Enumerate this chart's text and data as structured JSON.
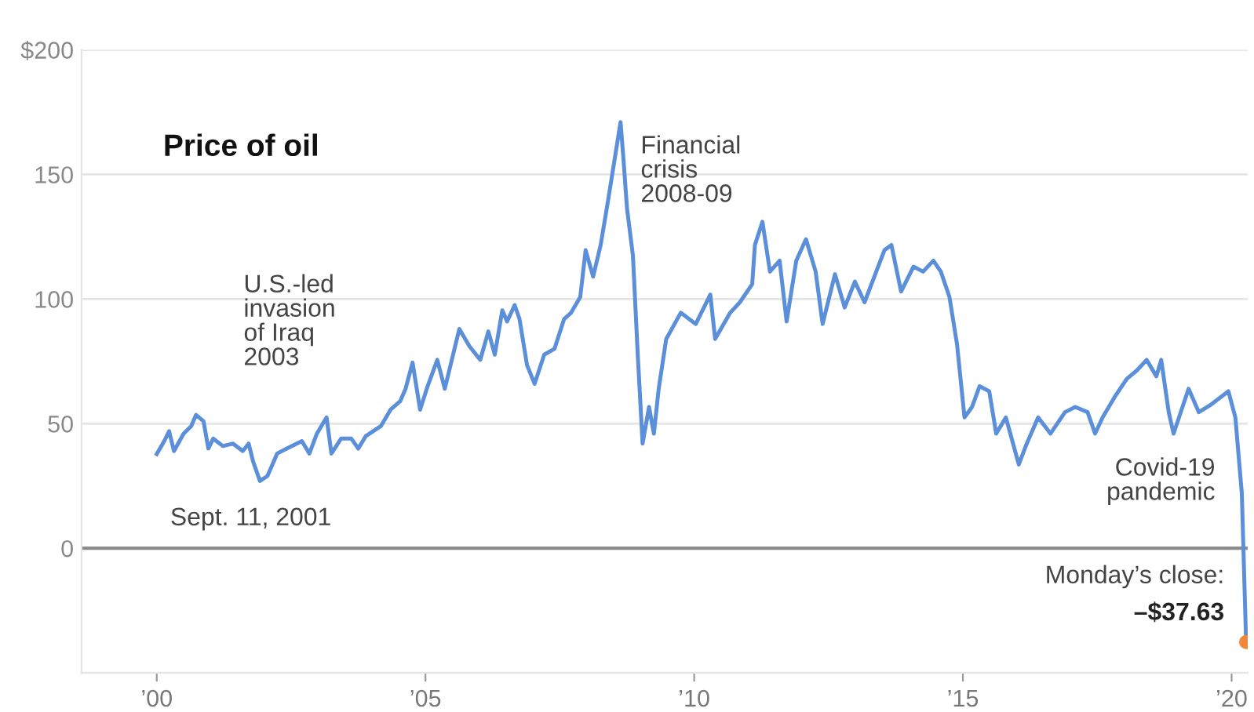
{
  "chart_data": {
    "type": "line",
    "title": "Price of oil",
    "x": [
      2000.0,
      2000.14,
      2000.23,
      2000.32,
      2000.5,
      2000.64,
      2000.73,
      2000.87,
      2000.96,
      2001.05,
      2001.23,
      2001.42,
      2001.6,
      2001.71,
      2001.79,
      2001.92,
      2002.06,
      2002.24,
      2002.42,
      2002.7,
      2002.84,
      2002.98,
      2003.16,
      2003.25,
      2003.43,
      2003.62,
      2003.75,
      2003.89,
      2004.17,
      2004.35,
      2004.53,
      2004.63,
      2004.76,
      2004.9,
      2005.04,
      2005.22,
      2005.36,
      2005.54,
      2005.63,
      2005.82,
      2006.02,
      2006.17,
      2006.29,
      2006.43,
      2006.52,
      2006.66,
      2006.75,
      2006.89,
      2007.03,
      2007.21,
      2007.4,
      2007.58,
      2007.71,
      2007.88,
      2007.98,
      2008.12,
      2008.26,
      2008.39,
      2008.53,
      2008.63,
      2008.68,
      2008.75,
      2008.86,
      2008.95,
      2009.04,
      2009.16,
      2009.25,
      2009.34,
      2009.48,
      2009.75,
      2010.03,
      2010.3,
      2010.39,
      2010.67,
      2010.85,
      2011.08,
      2011.13,
      2011.27,
      2011.41,
      2011.59,
      2011.72,
      2011.9,
      2012.08,
      2012.26,
      2012.39,
      2012.62,
      2012.8,
      2012.99,
      2013.17,
      2013.54,
      2013.67,
      2013.85,
      2014.08,
      2014.26,
      2014.45,
      2014.59,
      2014.75,
      2014.89,
      2015.03,
      2015.17,
      2015.31,
      2015.49,
      2015.62,
      2015.8,
      2016.04,
      2016.17,
      2016.4,
      2016.63,
      2016.9,
      2017.09,
      2017.32,
      2017.46,
      2017.6,
      2017.83,
      2018.05,
      2018.24,
      2018.42,
      2018.6,
      2018.69,
      2018.83,
      2018.92,
      2019.2,
      2019.39,
      2019.62,
      2019.94,
      2020.07,
      2020.19,
      2020.27
    ],
    "series": [
      {
        "color": "#5b8fd9",
        "values": [
          37.8,
          43,
          47,
          39,
          46,
          49,
          53.5,
          51,
          40,
          44,
          41,
          42,
          39,
          42,
          35,
          27,
          29,
          38,
          40,
          43,
          38,
          46,
          52.5,
          38,
          44,
          44,
          40,
          45,
          49,
          55.6,
          59,
          64,
          74.5,
          55.6,
          65,
          75.6,
          64,
          80,
          88,
          81,
          75.6,
          87,
          77.7,
          95.5,
          91,
          97.6,
          92,
          73.5,
          66,
          77.7,
          80,
          92,
          94.5,
          100.8,
          119.6,
          109,
          121.7,
          138.5,
          157.4,
          171,
          157.4,
          136.4,
          117.5,
          77.7,
          42,
          56.7,
          46,
          64,
          84,
          94.5,
          90,
          101.8,
          84,
          94.5,
          98.7,
          106,
          121.7,
          131,
          111,
          115.4,
          91,
          115.4,
          124,
          111,
          90,
          110,
          96.6,
          107,
          98.7,
          119.6,
          121.7,
          103,
          113,
          111,
          115.4,
          111,
          100.8,
          82,
          52.5,
          56.7,
          65,
          63,
          46,
          52.5,
          33.6,
          41,
          52.5,
          46,
          54.6,
          56.7,
          54.6,
          46,
          52.5,
          60.9,
          68,
          71.4,
          75.6,
          69,
          75.6,
          54.6,
          46,
          64,
          54.6,
          57.7,
          63,
          52.5,
          22,
          -37.63
        ]
      },
      {
        "type": "scatter",
        "color": "#f2873a",
        "x": [
          2020.27
        ],
        "values": [
          -37.63
        ]
      }
    ],
    "xlim": [
      1998.6,
      2020.3
    ],
    "xticks": [
      {
        "value": 2000,
        "label": "’00"
      },
      {
        "value": 2005,
        "label": "’05"
      },
      {
        "value": 2010,
        "label": "’10"
      },
      {
        "value": 2015,
        "label": "’15"
      },
      {
        "value": 2020,
        "label": "’20"
      }
    ],
    "ylim": [
      -50,
      200
    ],
    "yticks": [
      {
        "value": -50,
        "label": null
      },
      0,
      50,
      100,
      150,
      {
        "value": 200,
        "label": "$200"
      }
    ],
    "grid": "y",
    "ref_lines": [
      {
        "axis": "y",
        "value": 0,
        "color": "#8c8c8c"
      }
    ],
    "annotations": [
      {
        "text": "Sept. 11, 2001",
        "x": 2001.75,
        "y": 27
      },
      "U.S.-led\ninvasion\nof Iraq\n2003",
      {
        "text": "Financial\ncrisis\n2008-09",
        "x": 2008.68,
        "y": 171
      },
      {
        "text": "Covid-19\npandemic",
        "x": 2020.1,
        "y": 40
      },
      {
        "text": "Monday’s close:",
        "x": 2020.27,
        "y": -37.63
      },
      {
        "text": "–$37.63",
        "x": 2020.27,
        "y": -37.63
      }
    ]
  }
}
